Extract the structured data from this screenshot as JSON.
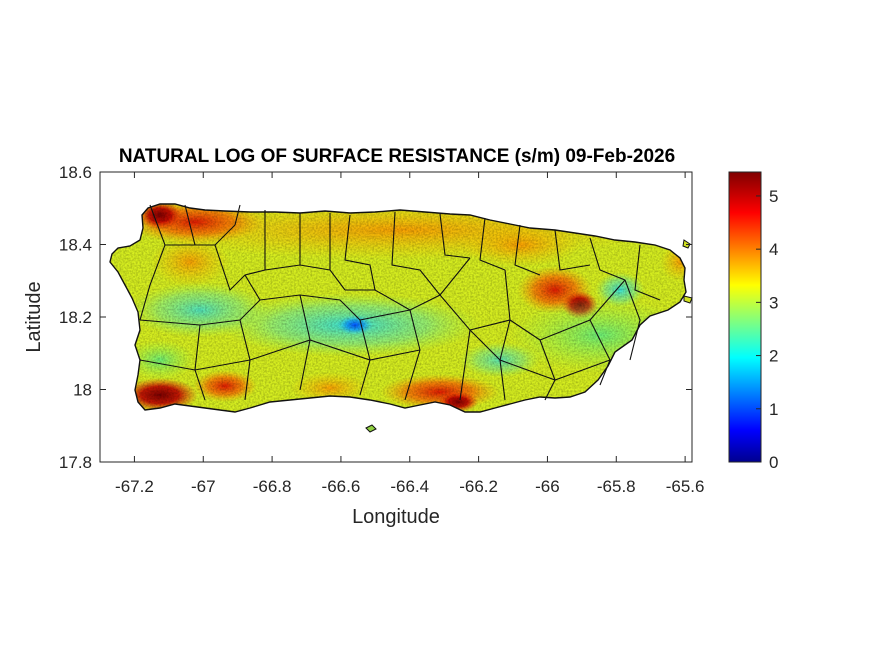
{
  "title": "NATURAL LOG OF SURFACE RESISTANCE (s/m) 09-Feb-2026",
  "xlabel": "Longitude",
  "ylabel": "Latitude",
  "xticks": [
    "-67.2",
    "-67",
    "-66.8",
    "-66.6",
    "-66.4",
    "-66.2",
    "-66",
    "-65.8",
    "-65.6"
  ],
  "yticks": [
    "18.6",
    "18.4",
    "18.2",
    "18",
    "17.8"
  ],
  "colorbar_ticks": [
    "5",
    "4",
    "3",
    "2",
    "1",
    "0"
  ],
  "colormap": "jet",
  "map_data": {
    "region": "Puerto Rico",
    "variable": "natural log of surface resistance",
    "units": "s/m",
    "xlim": [
      -67.3,
      -65.58
    ],
    "ylim": [
      17.8,
      18.6
    ],
    "clim": [
      0,
      5.45
    ],
    "typical_value": 3,
    "high_value_areas": [
      "northwest coast",
      "southwest coast",
      "south coast",
      "northeast interior"
    ],
    "low_value_areas": [
      "central interior",
      "east interior"
    ]
  }
}
